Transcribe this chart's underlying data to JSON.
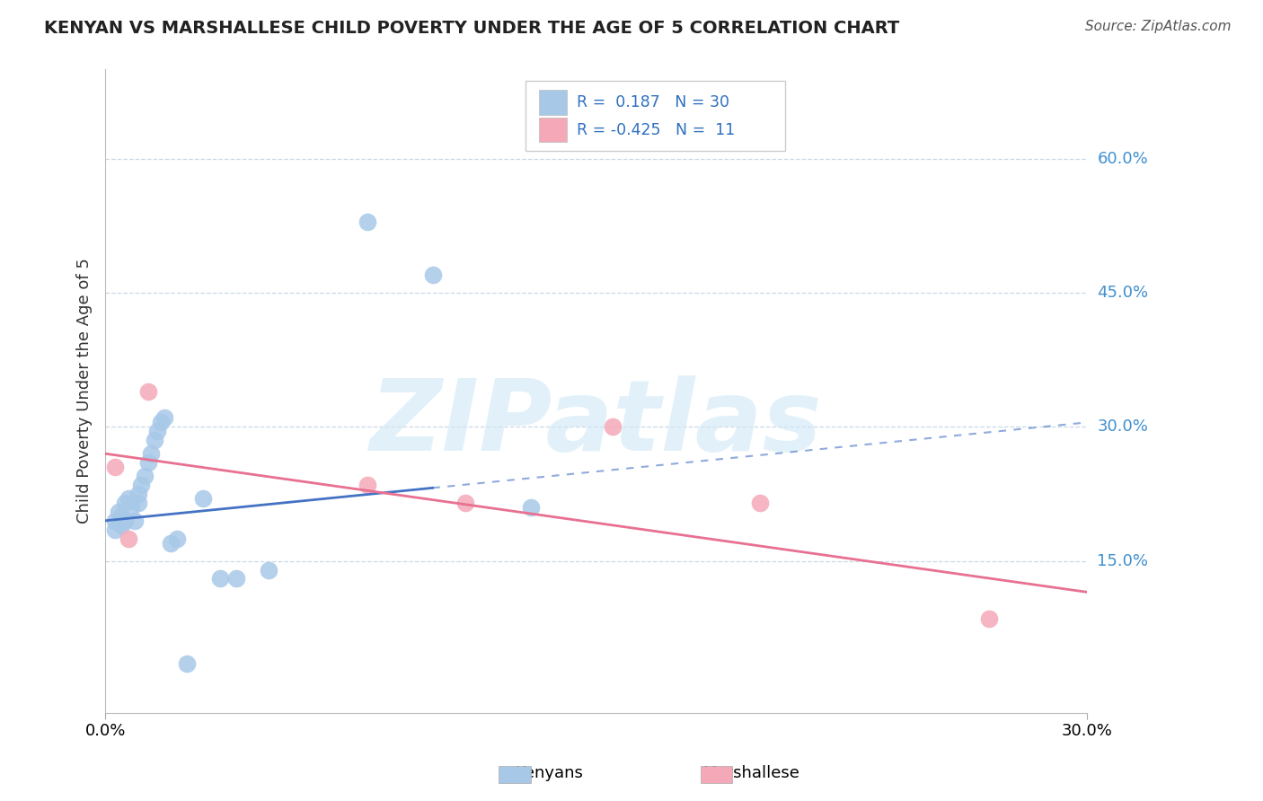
{
  "title": "KENYAN VS MARSHALLESE CHILD POVERTY UNDER THE AGE OF 5 CORRELATION CHART",
  "source": "Source: ZipAtlas.com",
  "ylabel": "Child Poverty Under the Age of 5",
  "xlim": [
    0.0,
    0.3
  ],
  "ylim": [
    -0.02,
    0.7
  ],
  "x_tick_positions": [
    0.0,
    0.3
  ],
  "x_tick_labels": [
    "0.0%",
    "30.0%"
  ],
  "y_tick_positions": [
    0.15,
    0.3,
    0.45,
    0.6
  ],
  "y_tick_labels": [
    "15.0%",
    "30.0%",
    "45.0%",
    "60.0%"
  ],
  "kenyan_color": "#a8c8e8",
  "marshallese_color": "#f4a8b8",
  "kenyan_trend_color": "#4472c4",
  "marshallese_trend_color": "#e87090",
  "watermark_color": "#d0e8f5",
  "watermark": "ZIPatlas",
  "background_color": "#ffffff",
  "kenyan_x": [
    0.003,
    0.003,
    0.004,
    0.005,
    0.005,
    0.006,
    0.006,
    0.007,
    0.008,
    0.009,
    0.01,
    0.01,
    0.011,
    0.012,
    0.013,
    0.014,
    0.015,
    0.016,
    0.017,
    0.018,
    0.02,
    0.022,
    0.025,
    0.03,
    0.035,
    0.04,
    0.05,
    0.08,
    0.1,
    0.13
  ],
  "kenyan_y": [
    0.195,
    0.185,
    0.205,
    0.2,
    0.19,
    0.215,
    0.195,
    0.22,
    0.21,
    0.195,
    0.225,
    0.215,
    0.235,
    0.245,
    0.26,
    0.27,
    0.285,
    0.295,
    0.305,
    0.31,
    0.17,
    0.175,
    0.035,
    0.22,
    0.13,
    0.13,
    0.14,
    0.53,
    0.47,
    0.21
  ],
  "marshallese_x": [
    0.003,
    0.007,
    0.013,
    0.08,
    0.11,
    0.155,
    0.2,
    0.27
  ],
  "marshallese_y": [
    0.255,
    0.175,
    0.34,
    0.235,
    0.215,
    0.3,
    0.215,
    0.085
  ],
  "kenyan_trend_x0": 0.0,
  "kenyan_trend_y0": 0.195,
  "kenyan_trend_x1": 0.3,
  "kenyan_trend_y1": 0.305,
  "marshallese_trend_x0": 0.0,
  "marshallese_trend_y0": 0.27,
  "marshallese_trend_x1": 0.3,
  "marshallese_trend_y1": 0.115
}
